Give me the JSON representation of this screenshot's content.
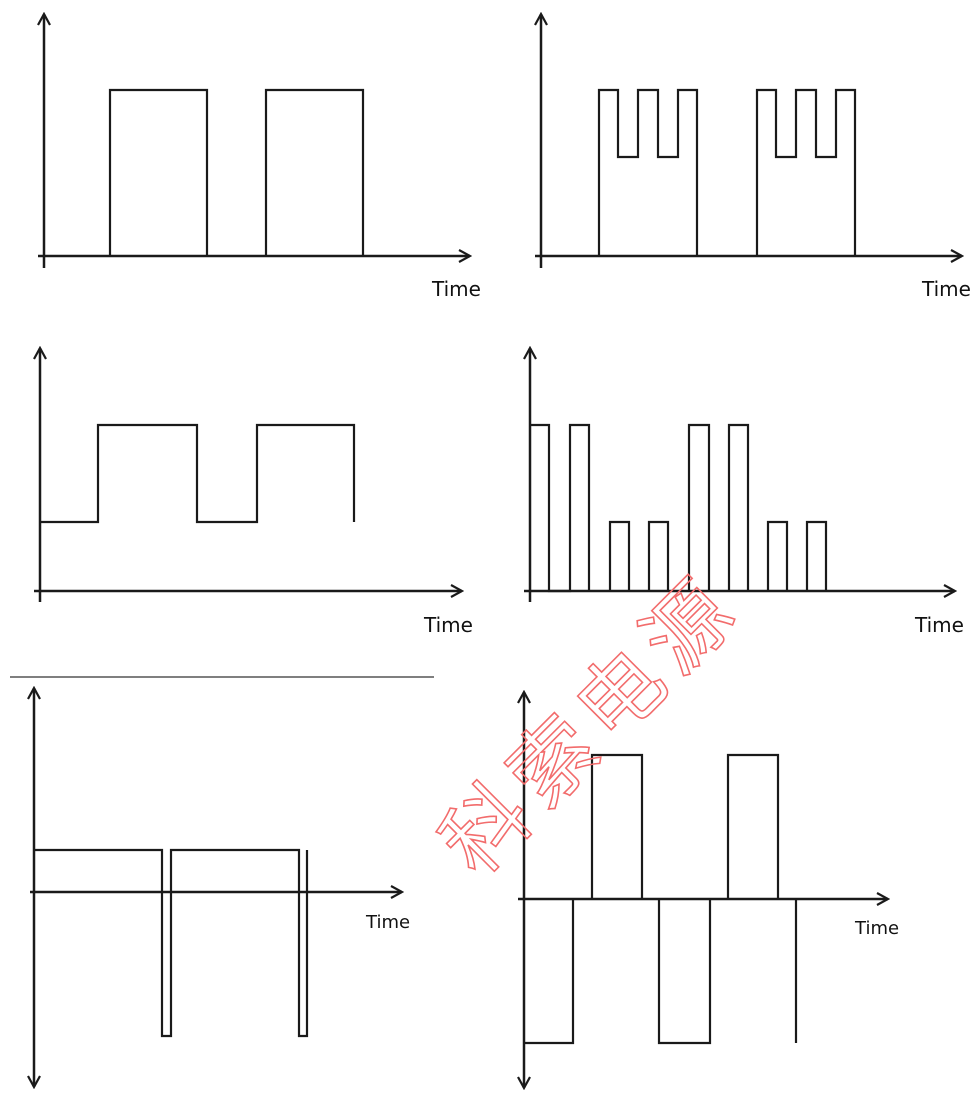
{
  "time_label": "Time",
  "watermark": {
    "chars": [
      "科",
      "索",
      "电",
      "源"
    ],
    "color": "#f26c6c"
  },
  "diagram": {
    "panels": [
      {
        "id": "panel-1",
        "shape": "unipolar-rectangular-pulses"
      },
      {
        "id": "panel-2",
        "shape": "rectangular-pulses-with-notches"
      },
      {
        "id": "panel-3",
        "shape": "two-level-square-wave-with-offset"
      },
      {
        "id": "panel-4",
        "shape": "two-amplitude-pulse-train"
      },
      {
        "id": "panel-5",
        "shape": "dc-level-with-negative-spikes"
      },
      {
        "id": "panel-6",
        "shape": "bipolar-quasi-square-wave"
      }
    ]
  }
}
